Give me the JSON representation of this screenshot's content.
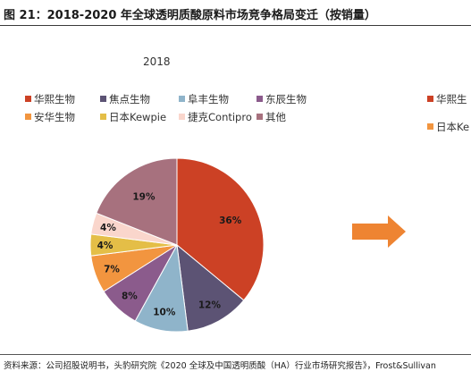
{
  "header": {
    "title": "图 21：2018-2020 年全球透明质酸原料市场竞争格局变迁（按销量）"
  },
  "chart_data": {
    "type": "pie",
    "title": "2018",
    "series": [
      {
        "name": "华熙生物",
        "value": 36,
        "label": "36%",
        "color": "#CC4125"
      },
      {
        "name": "焦点生物",
        "value": 12,
        "label": "12%",
        "color": "#5C5374"
      },
      {
        "name": "阜丰生物",
        "value": 10,
        "label": "10%",
        "color": "#8FB4CA"
      },
      {
        "name": "东辰生物",
        "value": 8,
        "label": "8%",
        "color": "#8B5B8C"
      },
      {
        "name": "安华生物",
        "value": 7,
        "label": "7%",
        "color": "#F2953F"
      },
      {
        "name": "日本Kewpie",
        "value": 4,
        "label": "4%",
        "color": "#E4BE47"
      },
      {
        "name": "捷克Contipro",
        "value": 4,
        "label": "4%",
        "color": "#FAD6CC"
      },
      {
        "name": "其他",
        "value": 19,
        "label": "19%",
        "color": "#A7717E"
      }
    ],
    "legend_position": "top"
  },
  "right_panel": {
    "legend_items": [
      {
        "name": "华熙生",
        "color": "#CC4125"
      },
      {
        "name": "日本Ke",
        "color": "#F2953F"
      }
    ]
  },
  "arrow": {
    "color": "#EE8432",
    "icon": "right-arrow-icon"
  },
  "footer": {
    "source": "资料来源：公司招股说明书，头豹研究院《2020 全球及中国透明质酸（HA）行业市场研究报告》，Frost&Sullivan"
  }
}
